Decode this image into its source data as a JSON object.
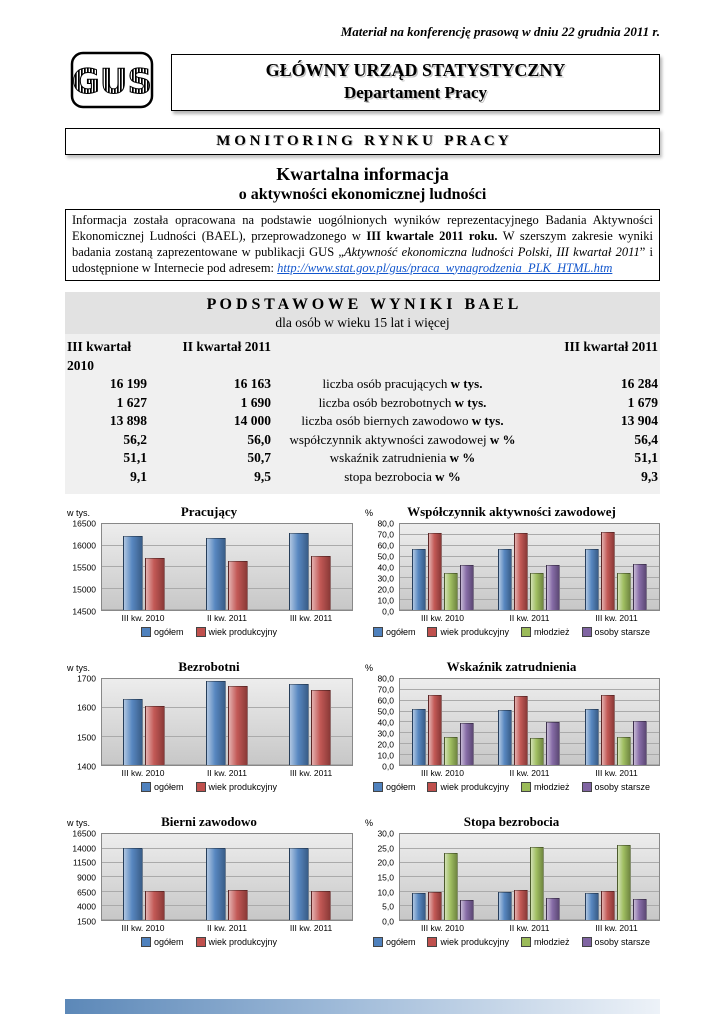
{
  "header": {
    "press_note": "Materiał na konferencję prasową w dniu 22 grudnia 2011 r.",
    "logo_text": "GUS",
    "org_name": "GŁÓWNY URZĄD STATYSTYCZNY",
    "org_dept": "Departament Pracy"
  },
  "banner": {
    "monitoring": "M O N I T O R I N G   R Y N K U   P R A C Y",
    "title_line1": "Kwartalna informacja",
    "title_line2": "o aktywności ekonomicznej ludności"
  },
  "intro": {
    "seg1": "Informacja została opracowana na podstawie uogólnionych wyników reprezentacyjnego Badania Aktywności Ekonomicznej Ludności (BAEL), przeprowadzonego w ",
    "seg2_bold": "III kwartale 2011 roku.",
    "seg3": " W szerszym zakresie wyniki badania zostaną zaprezentowane w publikacji GUS „",
    "seg4_italic": "Aktywność ekonomiczna ludności Polski, III kwartał 2011",
    "seg5": "” i udostępnione w Internecie pod adresem: ",
    "link": "http://www.stat.gov.pl/gus/praca_wynagrodzenia_PLK_HTML.htm"
  },
  "results": {
    "heading": "P O D S T A W O W E   W Y N I K I   B A E L",
    "subheading": "dla osób w wieku 15 lat i więcej",
    "col_headers": [
      "III kwartał 2010",
      "II kwartał 2011",
      "III kwartał 2011"
    ],
    "rows": [
      {
        "q3_2010": "16 199",
        "q2_2011": "16 163",
        "label": "liczba osób pracujących",
        "unit": "w tys.",
        "q3_2011": "16 284"
      },
      {
        "q3_2010": "1 627",
        "q2_2011": "1 690",
        "label": "liczba osób bezrobotnych",
        "unit": "w tys.",
        "q3_2011": "1 679"
      },
      {
        "q3_2010": "13 898",
        "q2_2011": "14 000",
        "label": "liczba osób biernych zawodowo",
        "unit": "w tys.",
        "q3_2011": "13 904"
      },
      {
        "q3_2010": "56,2",
        "q2_2011": "56,0",
        "label": "współczynnik aktywności zawodowej",
        "unit": "w %",
        "q3_2011": "56,4"
      },
      {
        "q3_2010": "51,1",
        "q2_2011": "50,7",
        "label": "wskaźnik zatrudnienia",
        "unit": "w %",
        "q3_2011": "51,1"
      },
      {
        "q3_2010": "9,1",
        "q2_2011": "9,5",
        "label": "stopa bezrobocia",
        "unit": "w %",
        "q3_2011": "9,3"
      }
    ]
  },
  "colors": {
    "series_ogolem": "#4F81BD",
    "series_wiek_produkcyjny": "#C0504D",
    "series_mlodziez": "#9BBB59",
    "series_osoby_starsze": "#8064A2",
    "footer_gradient": [
      "#5c88b8",
      "#9db9d8",
      "#edf2f8"
    ]
  },
  "chart_data": [
    {
      "type": "bar",
      "title": "Pracujący",
      "unit": "w tys.",
      "categories": [
        "III kw. 2010",
        "II kw. 2011",
        "III kw. 2011"
      ],
      "ylim": [
        14500,
        16500
      ],
      "yticks": [
        {
          "value": 14500,
          "label": "14500"
        },
        {
          "value": 15000,
          "label": "15000"
        },
        {
          "value": 15500,
          "label": "15500"
        },
        {
          "value": 16000,
          "label": "16000"
        },
        {
          "value": 16500,
          "label": "16500"
        }
      ],
      "series": [
        {
          "name": "ogółem",
          "color": "#4F81BD",
          "values": [
            16199,
            16163,
            16284
          ]
        },
        {
          "name": "wiek produkcyjny",
          "color": "#C0504D",
          "values": [
            15700,
            15620,
            15750
          ]
        }
      ]
    },
    {
      "type": "bar",
      "title": "Współczynnik aktywności zawodowej",
      "unit": "%",
      "categories": [
        "III kw. 2010",
        "II kw. 2011",
        "III kw. 2011"
      ],
      "ylim": [
        0,
        80
      ],
      "yticks": [
        {
          "value": 0,
          "label": "0,0"
        },
        {
          "value": 10,
          "label": "10,0"
        },
        {
          "value": 20,
          "label": "20,0"
        },
        {
          "value": 30,
          "label": "30,0"
        },
        {
          "value": 40,
          "label": "40,0"
        },
        {
          "value": 50,
          "label": "50,0"
        },
        {
          "value": 60,
          "label": "60,0"
        },
        {
          "value": 70,
          "label": "70,0"
        },
        {
          "value": 80,
          "label": "80,0"
        }
      ],
      "series": [
        {
          "name": "ogółem",
          "color": "#4F81BD",
          "values": [
            56.2,
            56.0,
            56.4
          ]
        },
        {
          "name": "wiek produkcyjny",
          "color": "#C0504D",
          "values": [
            71.3,
            71.0,
            71.7
          ]
        },
        {
          "name": "młodzież",
          "color": "#9BBB59",
          "values": [
            34.2,
            33.6,
            34.1
          ]
        },
        {
          "name": "osoby starsze",
          "color": "#8064A2",
          "values": [
            40.9,
            41.4,
            42.1
          ]
        }
      ]
    },
    {
      "type": "bar",
      "title": "Bezrobotni",
      "unit": "w tys.",
      "categories": [
        "III kw. 2010",
        "II kw. 2011",
        "III kw. 2011"
      ],
      "ylim": [
        1400,
        1700
      ],
      "yticks": [
        {
          "value": 1400,
          "label": "1400"
        },
        {
          "value": 1500,
          "label": "1500"
        },
        {
          "value": 1600,
          "label": "1600"
        },
        {
          "value": 1700,
          "label": "1700"
        }
      ],
      "series": [
        {
          "name": "ogółem",
          "color": "#4F81BD",
          "values": [
            1627,
            1690,
            1679
          ]
        },
        {
          "name": "wiek produkcyjny",
          "color": "#C0504D",
          "values": [
            1605,
            1673,
            1661
          ]
        }
      ]
    },
    {
      "type": "bar",
      "title": "Wskaźnik zatrudnienia",
      "unit": "%",
      "categories": [
        "III kw. 2010",
        "II kw. 2011",
        "III kw. 2011"
      ],
      "ylim": [
        0,
        80
      ],
      "yticks": [
        {
          "value": 0,
          "label": "0,0"
        },
        {
          "value": 10,
          "label": "10,0"
        },
        {
          "value": 20,
          "label": "20,0"
        },
        {
          "value": 30,
          "label": "30,0"
        },
        {
          "value": 40,
          "label": "40,0"
        },
        {
          "value": 50,
          "label": "50,0"
        },
        {
          "value": 60,
          "label": "60,0"
        },
        {
          "value": 70,
          "label": "70,0"
        },
        {
          "value": 80,
          "label": "80,0"
        }
      ],
      "series": [
        {
          "name": "ogółem",
          "color": "#4F81BD",
          "values": [
            51.1,
            50.7,
            51.1
          ]
        },
        {
          "name": "wiek produkcyjny",
          "color": "#C0504D",
          "values": [
            64.1,
            63.7,
            64.4
          ]
        },
        {
          "name": "młodzież",
          "color": "#9BBB59",
          "values": [
            25.8,
            24.8,
            25.2
          ]
        },
        {
          "name": "osoby starsze",
          "color": "#8064A2",
          "values": [
            38.6,
            39.1,
            40.2
          ]
        }
      ]
    },
    {
      "type": "bar",
      "title": "Bierni zawodowo",
      "unit": "w tys.",
      "categories": [
        "III kw. 2010",
        "II kw. 2011",
        "III kw. 2011"
      ],
      "ylim": [
        1500,
        16500
      ],
      "yticks": [
        {
          "value": 1500,
          "label": "1500"
        },
        {
          "value": 4000,
          "label": "4000"
        },
        {
          "value": 6500,
          "label": "6500"
        },
        {
          "value": 9000,
          "label": "9000"
        },
        {
          "value": 11500,
          "label": "11500"
        },
        {
          "value": 14000,
          "label": "14000"
        },
        {
          "value": 16500,
          "label": "16500"
        }
      ],
      "series": [
        {
          "name": "ogółem",
          "color": "#4F81BD",
          "values": [
            13898,
            14000,
            13904
          ]
        },
        {
          "name": "wiek produkcyjny",
          "color": "#C0504D",
          "values": [
            6510,
            6580,
            6440
          ]
        }
      ]
    },
    {
      "type": "bar",
      "title": "Stopa bezrobocia",
      "unit": "%",
      "categories": [
        "III kw. 2010",
        "II kw. 2011",
        "III kw. 2011"
      ],
      "ylim": [
        0,
        30
      ],
      "yticks": [
        {
          "value": 0,
          "label": "0,0"
        },
        {
          "value": 5,
          "label": "5,0"
        },
        {
          "value": 10,
          "label": "10,0"
        },
        {
          "value": 15,
          "label": "15,0"
        },
        {
          "value": 20,
          "label": "20,0"
        },
        {
          "value": 25,
          "label": "25,0"
        },
        {
          "value": 30,
          "label": "30,0"
        }
      ],
      "series": [
        {
          "name": "ogółem",
          "color": "#4F81BD",
          "values": [
            9.1,
            9.5,
            9.3
          ]
        },
        {
          "name": "wiek produkcyjny",
          "color": "#C0504D",
          "values": [
            9.7,
            10.1,
            9.9
          ]
        },
        {
          "name": "młodzież",
          "color": "#9BBB59",
          "values": [
            23.1,
            25.1,
            25.9
          ]
        },
        {
          "name": "osoby starsze",
          "color": "#8064A2",
          "values": [
            6.8,
            7.3,
            7.1
          ]
        }
      ]
    }
  ]
}
